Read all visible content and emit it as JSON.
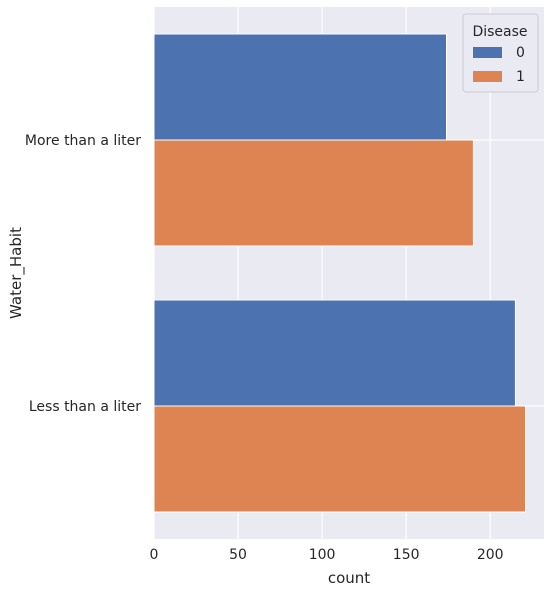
{
  "chart_data": {
    "type": "bar",
    "orientation": "horizontal",
    "categories": [
      "More than a liter",
      "Less than a liter"
    ],
    "series": [
      {
        "name": "0",
        "values": [
          174,
          215
        ],
        "color": "#4c72b0"
      },
      {
        "name": "1",
        "values": [
          190,
          221
        ],
        "color": "#dd8452"
      }
    ],
    "xlabel": "count",
    "ylabel": "Water_Habit",
    "xlim": [
      0,
      232
    ],
    "xticks": [
      0,
      50,
      100,
      150,
      200
    ],
    "legend": {
      "title": "Disease",
      "position": "top-right"
    },
    "grid": true,
    "style": {
      "background": "#eaeaf2",
      "grid_color": "#ffffff"
    }
  }
}
